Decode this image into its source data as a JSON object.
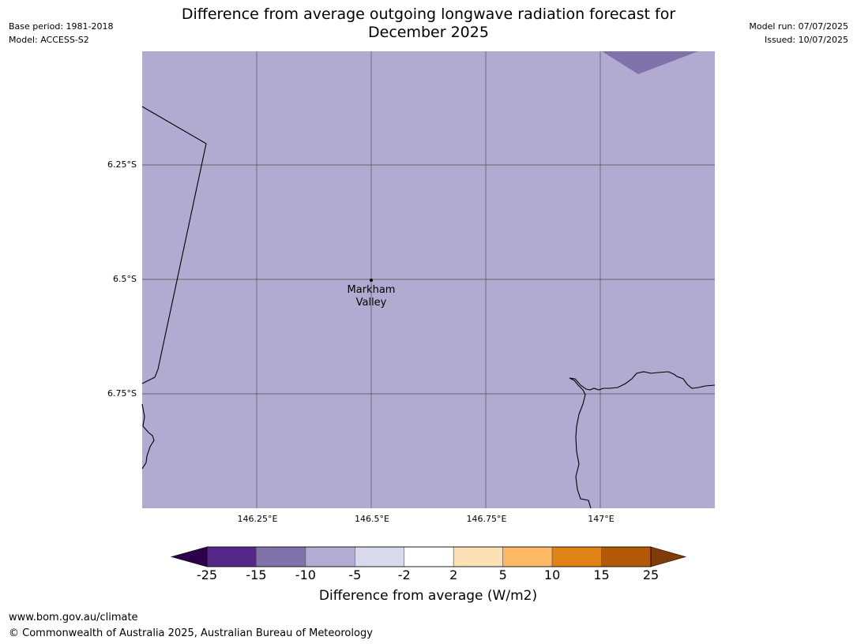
{
  "header": {
    "base_period": "Base period: 1981-2018",
    "model": "Model: ACCESS-S2",
    "model_run": "Model run: 07/07/2025",
    "issued": "Issued: 10/07/2025"
  },
  "title": {
    "line1": "Difference from average outgoing longwave radiation forecast for",
    "line2": "December 2025"
  },
  "map": {
    "fill_color": "#b1abd2",
    "dark_patch_color": "#8073ac",
    "lat_labels": [
      "6.25°S",
      "6.5°S",
      "6.75°S"
    ],
    "lon_labels": [
      "146.25°E",
      "146.5°E",
      "146.75°E",
      "147°E"
    ],
    "place": {
      "name_line1": "Markham",
      "name_line2": "Valley"
    }
  },
  "colorbar": {
    "label": "Difference from average (W/m2)",
    "ticks": [
      "-25",
      "-15",
      "-10",
      "-5",
      "-2",
      "2",
      "5",
      "10",
      "15",
      "25"
    ],
    "low_extend_color": "#2d004b",
    "high_extend_color": "#7f3b08",
    "bins": [
      {
        "color": "#542788"
      },
      {
        "color": "#8073ac"
      },
      {
        "color": "#b2abd2"
      },
      {
        "color": "#d8daeb"
      },
      {
        "color": "#ffffff"
      },
      {
        "color": "#fee0b6"
      },
      {
        "color": "#fdb863"
      },
      {
        "color": "#e08214"
      },
      {
        "color": "#b35806"
      }
    ]
  },
  "footer": {
    "url": "www.bom.gov.au/climate",
    "copyright": "© Commonwealth of Australia 2025, Australian Bureau of Meteorology"
  }
}
